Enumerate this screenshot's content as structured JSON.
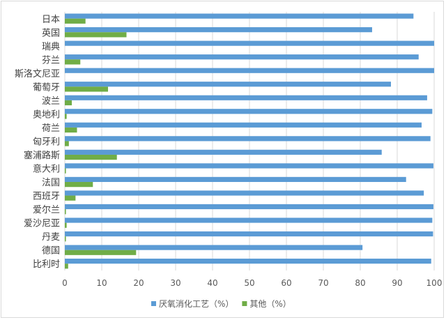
{
  "chart_data": {
    "type": "bar",
    "orientation": "horizontal",
    "categories": [
      "日本",
      "英国",
      "瑞典",
      "芬兰",
      "斯洛文尼亚",
      "葡萄牙",
      "波兰",
      "奥地利",
      "荷兰",
      "匈牙利",
      "塞浦路斯",
      "意大利",
      "法国",
      "西班牙",
      "爱尔兰",
      "爱沙尼亚",
      "丹麦",
      "德国",
      "比利时"
    ],
    "series": [
      {
        "name": "厌氧消化工艺（%）",
        "color": "#5b9bd5",
        "values": [
          94.4,
          83.2,
          100,
          95.8,
          100,
          88.3,
          98.1,
          99.5,
          96.6,
          99.0,
          85.8,
          99.8,
          92.4,
          97.2,
          99.8,
          99.5,
          99.7,
          80.6,
          99.2
        ]
      },
      {
        "name": "其他（%）",
        "color": "#70ad47",
        "values": [
          5.6,
          16.7,
          0,
          4.2,
          0,
          11.7,
          1.9,
          0.5,
          3.3,
          1.1,
          14.1,
          0.3,
          7.6,
          2.9,
          0.3,
          0.5,
          0.3,
          19.3,
          0.9
        ]
      }
    ],
    "xticks": [
      "0",
      "10",
      "20",
      "30",
      "40",
      "50",
      "60",
      "70",
      "80",
      "90",
      "100"
    ],
    "xlim": [
      0,
      100
    ],
    "grid": "vertical",
    "legend": "bottom",
    "title": "",
    "xlabel": "",
    "ylabel": ""
  }
}
